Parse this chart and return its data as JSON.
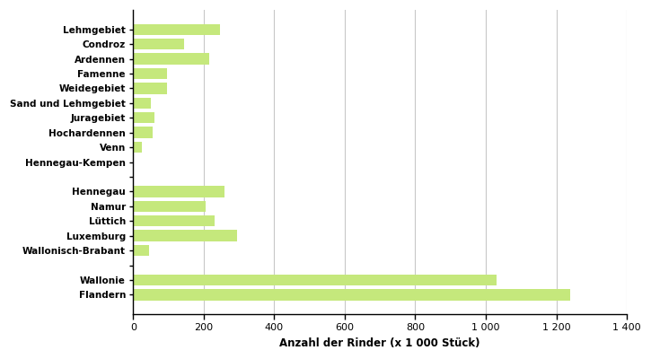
{
  "categories": [
    "Lehmgebiet",
    "Condroz",
    "Ardennen",
    "Famenne",
    "Weidegebiet",
    "Sand und Lehmgebiet",
    "Juragebiet",
    "Hochardennen",
    "Venn",
    "Hennegau-Kempen",
    "",
    "Hennegau",
    "Namur",
    "Lüttich",
    "Luxemburg",
    "Wallonisch-Brabant",
    "",
    "Wallonie",
    "Flandern"
  ],
  "values": [
    245,
    145,
    215,
    95,
    95,
    50,
    60,
    55,
    25,
    2,
    0,
    260,
    205,
    230,
    295,
    45,
    0,
    1030,
    1240
  ],
  "bar_color": "#c5e87c",
  "xlabel": "Anzahl der Rinder (x 1 000 Stück)",
  "xlim": [
    0,
    1400
  ],
  "xticks": [
    0,
    200,
    400,
    600,
    800,
    1000,
    1200,
    1400
  ],
  "xticklabels": [
    "0",
    "200",
    "400",
    "600",
    "800",
    "1 000",
    "1 200",
    "1 400"
  ],
  "background_color": "#ffffff",
  "grid_color": "#c8c8c8",
  "bar_height": 0.75
}
